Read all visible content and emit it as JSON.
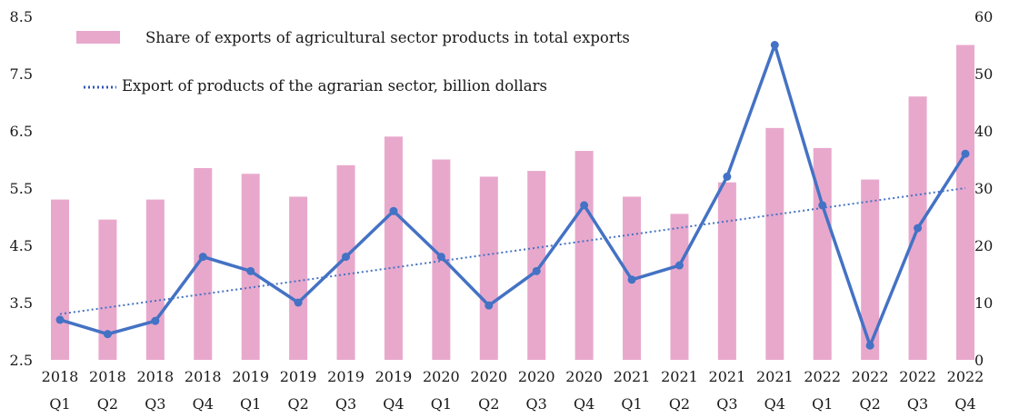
{
  "chart_data": {
    "type": "bar",
    "categories": [
      [
        "2018",
        "Q1"
      ],
      [
        "2018",
        "Q2"
      ],
      [
        "2018",
        "Q3"
      ],
      [
        "2018",
        "Q4"
      ],
      [
        "2019",
        "Q1"
      ],
      [
        "2019",
        "Q2"
      ],
      [
        "2019",
        "Q3"
      ],
      [
        "2019",
        "Q4"
      ],
      [
        "2020",
        "Q1"
      ],
      [
        "2020",
        "Q2"
      ],
      [
        "2020",
        "Q3"
      ],
      [
        "2020",
        "Q4"
      ],
      [
        "2021",
        "Q1"
      ],
      [
        "2021",
        "Q2"
      ],
      [
        "2021",
        "Q3"
      ],
      [
        "2021",
        "Q4"
      ],
      [
        "2022",
        "Q1"
      ],
      [
        "2022",
        "Q2"
      ],
      [
        "2022",
        "Q3"
      ],
      [
        "2022",
        "Q4"
      ]
    ],
    "series": [
      {
        "name": "Share of exports of agricultural sector products in total exports",
        "type": "bar",
        "axis": "left",
        "color": "#e8a8cc",
        "values": [
          5.3,
          4.95,
          5.3,
          5.85,
          5.75,
          5.35,
          5.9,
          6.4,
          6.0,
          5.7,
          5.8,
          6.15,
          5.35,
          5.05,
          5.6,
          6.55,
          6.2,
          5.65,
          7.1,
          8.0
        ]
      },
      {
        "name": "Export of products of the agrarian sector, billion dollars",
        "type": "line",
        "axis": "right",
        "color": "#4472c4",
        "values": [
          7,
          4.5,
          6.8,
          18,
          15.5,
          10,
          18,
          26,
          18,
          9.5,
          15.5,
          27,
          14,
          16.5,
          32,
          55,
          27,
          2.5,
          23,
          36
        ]
      }
    ],
    "trendline": {
      "of_series": "Export of products of the agrarian sector, billion dollars",
      "style": "dotted",
      "color": "#4472c4",
      "start_value": 8,
      "end_value": 30
    },
    "left_axis": {
      "ylim": [
        2.5,
        8.5
      ],
      "ticks": [
        "2.5",
        "3.5",
        "4.5",
        "5.5",
        "6.5",
        "7.5",
        "8.5"
      ]
    },
    "right_axis": {
      "ylim": [
        0,
        60
      ],
      "ticks": [
        "0",
        "10",
        "20",
        "30",
        "40",
        "50",
        "60"
      ]
    },
    "legend": {
      "placement": "top-left",
      "bar_label": "Share of exports of agricultural sector products in total exports",
      "line_label": "Export of products of the agrarian sector, billion dollars"
    },
    "title": "",
    "xlabel": "",
    "ylabel": "",
    "grid": false
  }
}
